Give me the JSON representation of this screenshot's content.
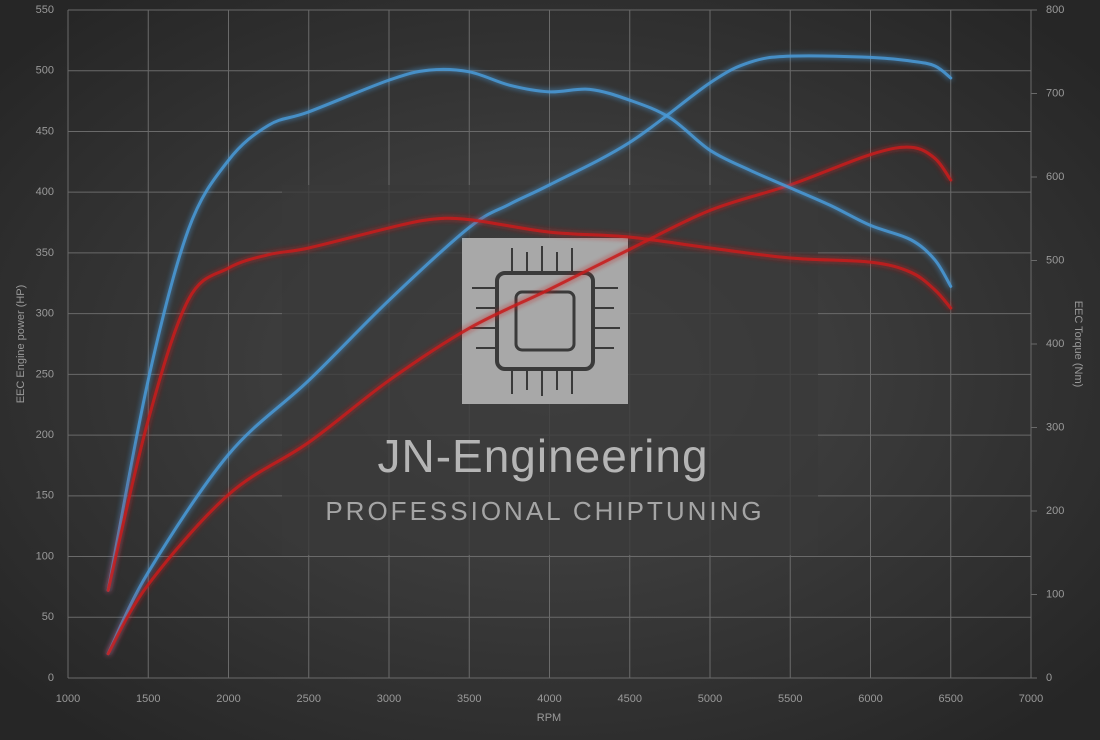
{
  "chart_data": {
    "type": "line",
    "xlabel": "RPM",
    "ylabel": "EEC Engine power (HP)",
    "y2label": "EEC Torque (Nm)",
    "annotations": [
      "JN-Engineering",
      "PROFESSIONAL CHIPTUNING"
    ],
    "xlim": [
      1000,
      7000
    ],
    "xticks": [
      1000,
      1500,
      2000,
      2500,
      3000,
      3500,
      4000,
      4500,
      5000,
      5500,
      6000,
      6500,
      7000
    ],
    "ylim": [
      0,
      550
    ],
    "yticks": [
      0,
      50,
      100,
      150,
      200,
      250,
      300,
      350,
      400,
      450,
      500,
      550
    ],
    "y2lim": [
      0,
      800
    ],
    "y2ticks": [
      0,
      100,
      200,
      300,
      400,
      500,
      600,
      700,
      800
    ],
    "grid": true,
    "series": [
      {
        "color": "#4a9ad8",
        "x": [
          1250,
          1500,
          2000,
          2500,
          3000,
          3500,
          3750,
          4000,
          4500,
          5000,
          5250,
          5500,
          6000,
          6250,
          6400,
          6500
        ],
        "values": [
          20,
          87,
          184,
          245,
          311,
          371,
          390,
          406,
          441,
          490,
          507,
          512,
          511,
          508,
          504,
          494
        ]
      },
      {
        "color": "#c81e1e",
        "x": [
          1250,
          1500,
          2000,
          2500,
          3000,
          3500,
          4000,
          4500,
          5000,
          5500,
          6000,
          6250,
          6400,
          6500
        ],
        "values": [
          20,
          77,
          151,
          194,
          245,
          288,
          320,
          353,
          385,
          406,
          431,
          437,
          428,
          410
        ]
      },
      {
        "color": "#4a9ad8",
        "axis": "y2",
        "x": [
          1250,
          1500,
          1750,
          2000,
          2250,
          2500,
          3000,
          3250,
          3500,
          3750,
          4000,
          4250,
          4500,
          4750,
          5000,
          5250,
          5500,
          5750,
          6000,
          6250,
          6400,
          6500
        ],
        "values": [
          105,
          357,
          537,
          620,
          662,
          678,
          716,
          728,
          726,
          710,
          702,
          705,
          692,
          671,
          632,
          608,
          587,
          566,
          542,
          525,
          501,
          469
        ]
      },
      {
        "color": "#c81e1e",
        "axis": "y2",
        "x": [
          1250,
          1500,
          1750,
          2000,
          2250,
          2500,
          3000,
          3250,
          3500,
          4000,
          4500,
          5000,
          5500,
          6000,
          6250,
          6400,
          6500
        ],
        "values": [
          105,
          309,
          453,
          491,
          507,
          515,
          539,
          549,
          549,
          534,
          528,
          515,
          503,
          498,
          486,
          465,
          443
        ]
      }
    ]
  }
}
